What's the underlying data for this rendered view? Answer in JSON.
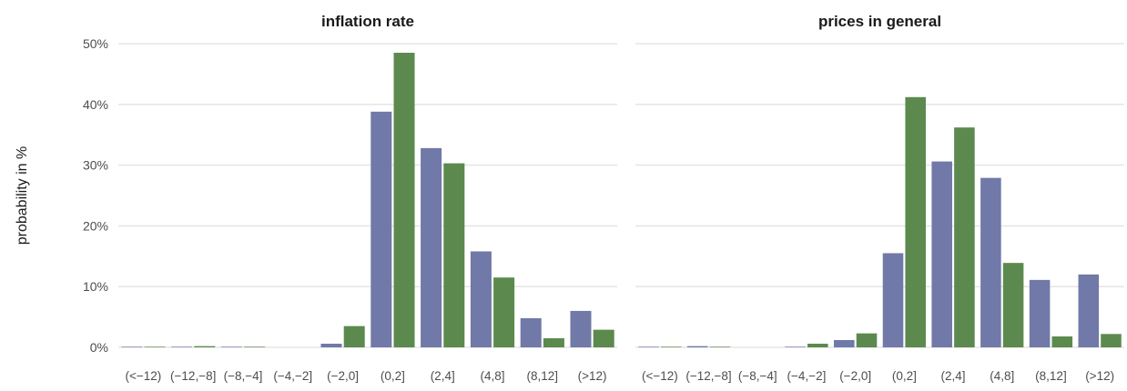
{
  "chart_data": {
    "type": "bar",
    "ylabel": "probability in %",
    "ylim": [
      0,
      50
    ],
    "yticks": [
      "0%",
      "10%",
      "20%",
      "30%",
      "40%",
      "50%"
    ],
    "categories": [
      "(<−12)",
      "(−12,−8]",
      "(−8,−4]",
      "(−4,−2]",
      "(−2,0]",
      "(0,2]",
      "(2,4]",
      "(4,8]",
      "(8,12]",
      "(>12)"
    ],
    "series_colors": [
      "#7079a8",
      "#5c8a4e"
    ],
    "grid": true,
    "legend": "none",
    "panels": [
      {
        "title": "inflation rate",
        "series": [
          {
            "values": [
              0.1,
              0.1,
              0.1,
              0.0,
              0.6,
              38.8,
              32.8,
              15.8,
              4.8,
              6.0
            ]
          },
          {
            "values": [
              0.1,
              0.2,
              0.1,
              0.0,
              3.5,
              48.5,
              30.3,
              11.5,
              1.5,
              2.9
            ]
          }
        ]
      },
      {
        "title": "prices in general",
        "series": [
          {
            "values": [
              0.1,
              0.2,
              0.0,
              0.1,
              1.2,
              15.5,
              30.6,
              27.9,
              11.1,
              12.0
            ]
          },
          {
            "values": [
              0.1,
              0.1,
              0.0,
              0.6,
              2.3,
              41.2,
              36.2,
              13.9,
              1.8,
              2.2
            ]
          }
        ]
      }
    ]
  }
}
